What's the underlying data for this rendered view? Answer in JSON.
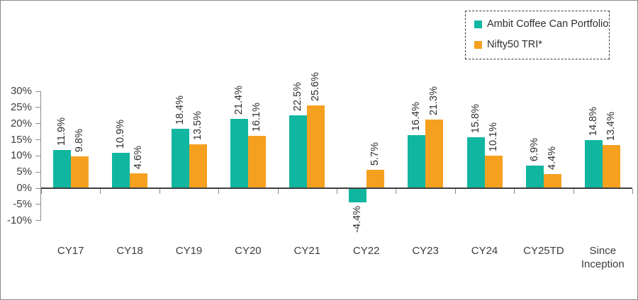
{
  "frame": {
    "border_color": "#8a8a8a",
    "background": "#ffffff"
  },
  "legend": {
    "position": "top-right",
    "border_style": "dashed",
    "items": [
      {
        "label": "Ambit Coffee Can Portfolio",
        "color": "#10B6A0"
      },
      {
        "label": "Nifty50 TRI*",
        "color": "#F6A020"
      }
    ]
  },
  "chart_data": {
    "type": "bar",
    "title": "",
    "xlabel": "",
    "ylabel": "",
    "grid": false,
    "legend_position": "top-right",
    "categories": [
      "CY17",
      "CY18",
      "CY19",
      "CY20",
      "CY21",
      "CY22",
      "CY23",
      "CY24",
      "CY25TD",
      "Since Inception"
    ],
    "series": [
      {
        "name": "Ambit Coffee Can Portfolio",
        "color": "#10B6A0",
        "values": [
          11.9,
          10.9,
          18.4,
          21.4,
          22.5,
          -4.4,
          16.4,
          15.8,
          6.9,
          14.8
        ],
        "labels": [
          "11.9%",
          "10.9%",
          "18.4%",
          "21.4%",
          "22.5%",
          "-4.4%",
          "16.4%",
          "15.8%",
          "6.9%",
          "14.8%"
        ]
      },
      {
        "name": "Nifty50 TRI*",
        "color": "#F6A020",
        "values": [
          9.8,
          4.6,
          13.5,
          16.1,
          25.6,
          5.7,
          21.3,
          10.1,
          4.4,
          13.4
        ],
        "labels": [
          "9.8%",
          "4.6%",
          "13.5%",
          "16.1%",
          "25.6%",
          "5.7%",
          "21.3%",
          "10.1%",
          "4.4%",
          "13.4%"
        ]
      }
    ],
    "y_axis": {
      "min": -10,
      "max": 30,
      "step": 5,
      "tick_labels": [
        "30%",
        "25%",
        "20%",
        "15%",
        "10%",
        "5%",
        "0%",
        "-5%",
        "-10%"
      ]
    },
    "value_label_rotation": "vertical-bottom-to-top",
    "colors": {
      "axis_line": "#8c8c8c",
      "zero_line": "#3f3f3f",
      "axis_text": "#3d3d3d",
      "value_text": "#2e2e2e"
    }
  }
}
